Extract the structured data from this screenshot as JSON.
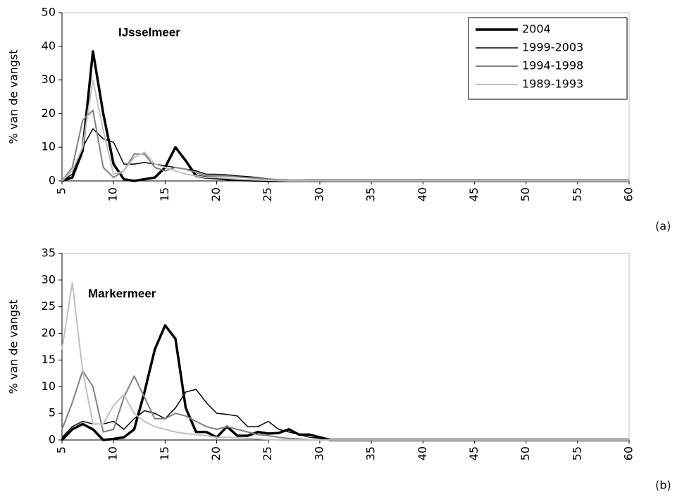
{
  "chart_data": [
    {
      "type": "line",
      "title": "IJsselmeer",
      "ylabel": "% van de vangst",
      "annotation": "(a)",
      "x": [
        5,
        6,
        7,
        8,
        9,
        10,
        11,
        12,
        13,
        14,
        15,
        16,
        17,
        18,
        19,
        20,
        21,
        22,
        23,
        24,
        25,
        26,
        27,
        28,
        29,
        30,
        31,
        32,
        33,
        34,
        35,
        36,
        37,
        38,
        39,
        40,
        41,
        42,
        43,
        44,
        45,
        46,
        47,
        48,
        49,
        50,
        51,
        52,
        53,
        54,
        55,
        56,
        57,
        58,
        59,
        60
      ],
      "xlim": [
        5,
        60
      ],
      "xticks": [
        5,
        10,
        15,
        20,
        25,
        30,
        35,
        40,
        45,
        50,
        55,
        60
      ],
      "ylim": [
        0,
        50
      ],
      "yticks": [
        0,
        10,
        20,
        30,
        40,
        50
      ],
      "legend": "upper right",
      "series": [
        {
          "name": "2004",
          "color": "#000000",
          "values": [
            0,
            1,
            9,
            38.5,
            20,
            5,
            0.5,
            0,
            0.5,
            1,
            4,
            10,
            6,
            1.5,
            1,
            0.8,
            0.5,
            0.3,
            0.2,
            0.1,
            0,
            0,
            0,
            0,
            0,
            0,
            0,
            0,
            0,
            0,
            0,
            0,
            0,
            0,
            0,
            0,
            0,
            0,
            0,
            0,
            0,
            0,
            0,
            0,
            0,
            0,
            0,
            0,
            0,
            0,
            0,
            0,
            0,
            0,
            0,
            0
          ]
        },
        {
          "name": "1999-2003",
          "color": "#000000",
          "values": [
            0,
            2,
            10,
            15.5,
            12.5,
            11.5,
            5,
            5,
            5.5,
            5,
            4.5,
            4,
            3.5,
            3,
            2,
            2,
            1.8,
            1.5,
            1.3,
            1,
            0.6,
            0.4,
            0.3,
            0.2,
            0.1,
            0,
            0,
            0,
            0,
            0,
            0,
            0,
            0,
            0,
            0,
            0,
            0,
            0,
            0,
            0,
            0,
            0,
            0,
            0,
            0,
            0,
            0,
            0,
            0,
            0,
            0,
            0,
            0,
            0,
            0,
            0
          ]
        },
        {
          "name": "1994-1998",
          "color": "#808080",
          "values": [
            0,
            4,
            18,
            21,
            4,
            1,
            3,
            8,
            8,
            4,
            3,
            4,
            3.5,
            2.5,
            1.5,
            1.5,
            1.5,
            1.2,
            1,
            0.8,
            0.5,
            0.3,
            0.2,
            0.1,
            0,
            0,
            0,
            0,
            0,
            0,
            0,
            0,
            0,
            0,
            0,
            0,
            0,
            0,
            0,
            0,
            0,
            0,
            0,
            0,
            0,
            0,
            0,
            0,
            0,
            0,
            0,
            0,
            0,
            0,
            0,
            0
          ]
        },
        {
          "name": "1989-1993",
          "color": "#c0c0c0",
          "values": [
            0,
            3,
            10,
            30,
            15,
            2,
            3,
            7,
            8.5,
            5,
            4,
            3,
            2,
            1.5,
            1,
            1,
            0.8,
            0.5,
            0.4,
            0.3,
            0.2,
            0.1,
            0,
            0,
            0,
            0,
            0,
            0,
            0,
            0,
            0,
            0,
            0,
            0,
            0,
            0,
            0,
            0,
            0,
            0,
            0,
            0,
            0,
            0,
            0,
            0,
            0,
            0,
            0,
            0,
            0,
            0,
            0,
            0,
            0,
            0
          ]
        }
      ]
    },
    {
      "type": "line",
      "title": "Markermeer",
      "ylabel": "% van de vangst",
      "annotation": "(b)",
      "x": [
        5,
        6,
        7,
        8,
        9,
        10,
        11,
        12,
        13,
        14,
        15,
        16,
        17,
        18,
        19,
        20,
        21,
        22,
        23,
        24,
        25,
        26,
        27,
        28,
        29,
        30,
        31,
        32,
        33,
        34,
        35,
        36,
        37,
        38,
        39,
        40,
        41,
        42,
        43,
        44,
        45,
        46,
        47,
        48,
        49,
        50,
        51,
        52,
        53,
        54,
        55,
        56,
        57,
        58,
        59,
        60
      ],
      "xlim": [
        5,
        60
      ],
      "xticks": [
        5,
        10,
        15,
        20,
        25,
        30,
        35,
        40,
        45,
        50,
        55,
        60
      ],
      "ylim": [
        0,
        35
      ],
      "yticks": [
        0,
        5,
        10,
        15,
        20,
        25,
        30,
        35
      ],
      "series": [
        {
          "color": "#000000",
          "values": [
            0,
            2,
            3,
            2,
            0,
            0.2,
            0.5,
            2,
            9,
            17,
            21.5,
            19,
            6,
            1.5,
            1.5,
            0.5,
            2.5,
            0.8,
            0.8,
            1.5,
            1.2,
            1.3,
            2,
            1,
            1,
            0.5,
            0,
            0,
            0,
            0,
            0,
            0,
            0,
            0,
            0,
            0,
            0,
            0,
            0,
            0,
            0,
            0,
            0,
            0,
            0,
            0,
            0,
            0,
            0,
            0,
            0,
            0,
            0,
            0,
            0,
            0
          ]
        },
        {
          "color": "#000000",
          "values": [
            0.5,
            2.5,
            3.5,
            3,
            3,
            3.5,
            2,
            4,
            5.5,
            5,
            4,
            6,
            9,
            9.5,
            7,
            5,
            4.8,
            4.5,
            2.5,
            2.5,
            3.5,
            2,
            1.5,
            1,
            0.5,
            0.3,
            0,
            0,
            0,
            0,
            0,
            0,
            0,
            0,
            0,
            0,
            0,
            0,
            0,
            0,
            0,
            0,
            0,
            0,
            0,
            0,
            0,
            0,
            0,
            0,
            0,
            0,
            0,
            0,
            0,
            0
          ]
        },
        {
          "color": "#808080",
          "values": [
            2,
            7,
            13,
            10,
            1.5,
            2,
            8,
            12,
            8,
            4,
            4,
            5,
            4.5,
            3.5,
            2.5,
            2,
            2.5,
            2,
            1.5,
            1,
            0.8,
            0.5,
            0.3,
            0.2,
            0,
            0,
            0,
            0,
            0,
            0,
            0,
            0,
            0,
            0,
            0,
            0,
            0,
            0,
            0,
            0,
            0,
            0,
            0,
            0,
            0,
            0,
            0,
            0,
            0,
            0,
            0,
            0,
            0,
            0,
            0,
            0
          ]
        },
        {
          "color": "#c0c0c0",
          "values": [
            17,
            29.5,
            13,
            3,
            3,
            6.5,
            8.5,
            5,
            3.5,
            2.5,
            2,
            1.5,
            1.2,
            1,
            0.8,
            0.5,
            0.5,
            0.4,
            0.3,
            0.2,
            0.1,
            0,
            0,
            0,
            0,
            0,
            0,
            0,
            0,
            0,
            0,
            0,
            0,
            0,
            0,
            0,
            0,
            0,
            0,
            0,
            0,
            0,
            0,
            0,
            0,
            0,
            0,
            0,
            0,
            0,
            0,
            0,
            0,
            0,
            0,
            0
          ]
        }
      ]
    }
  ]
}
